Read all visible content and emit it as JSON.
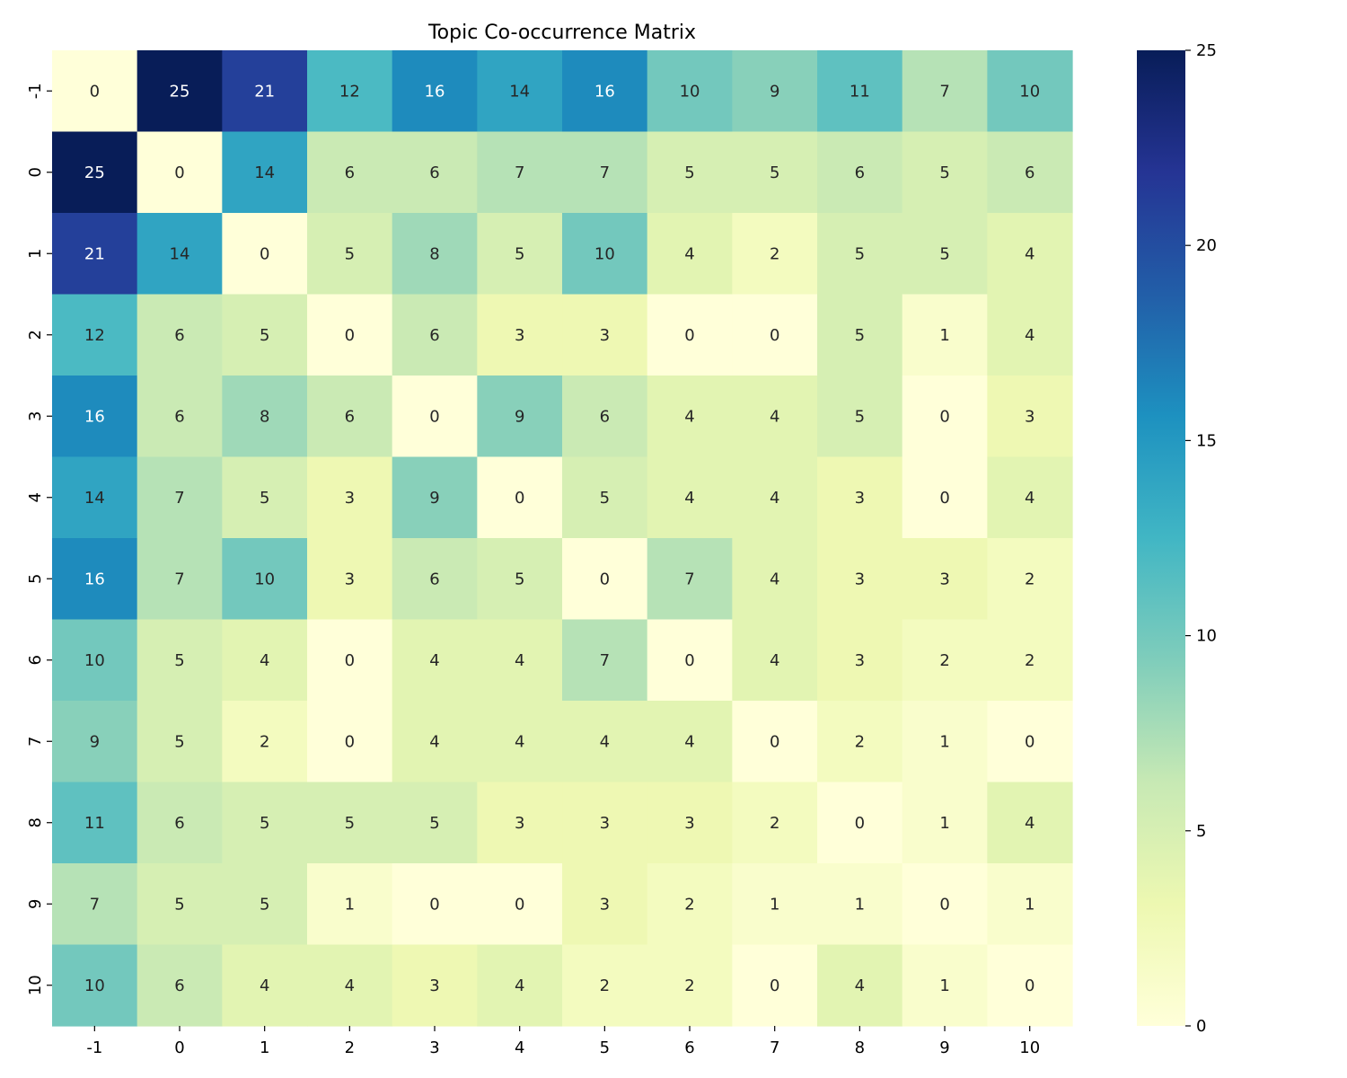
{
  "chart_data": {
    "type": "heatmap",
    "title": "Topic Co-occurrence Matrix",
    "xlabel": "",
    "ylabel": "",
    "x_categories": [
      "-1",
      "0",
      "1",
      "2",
      "3",
      "4",
      "5",
      "6",
      "7",
      "8",
      "9",
      "10"
    ],
    "y_categories": [
      "-1",
      "0",
      "1",
      "2",
      "3",
      "4",
      "5",
      "6",
      "7",
      "8",
      "9",
      "10"
    ],
    "values": [
      [
        0,
        25,
        21,
        12,
        16,
        14,
        16,
        10,
        9,
        11,
        7,
        10
      ],
      [
        25,
        0,
        14,
        6,
        6,
        7,
        7,
        5,
        5,
        6,
        5,
        6
      ],
      [
        21,
        14,
        0,
        5,
        8,
        5,
        10,
        4,
        2,
        5,
        5,
        4
      ],
      [
        12,
        6,
        5,
        0,
        6,
        3,
        3,
        0,
        0,
        5,
        1,
        4
      ],
      [
        16,
        6,
        8,
        6,
        0,
        9,
        6,
        4,
        4,
        5,
        0,
        3
      ],
      [
        14,
        7,
        5,
        3,
        9,
        0,
        5,
        4,
        4,
        3,
        0,
        4
      ],
      [
        16,
        7,
        10,
        3,
        6,
        5,
        0,
        7,
        4,
        3,
        3,
        2
      ],
      [
        10,
        5,
        4,
        0,
        4,
        4,
        7,
        0,
        4,
        3,
        2,
        2
      ],
      [
        9,
        5,
        2,
        0,
        4,
        4,
        4,
        4,
        0,
        2,
        1,
        0
      ],
      [
        11,
        6,
        5,
        5,
        5,
        3,
        3,
        3,
        2,
        0,
        1,
        4
      ],
      [
        7,
        5,
        5,
        1,
        0,
        0,
        3,
        2,
        1,
        1,
        0,
        1
      ],
      [
        10,
        6,
        4,
        4,
        3,
        4,
        2,
        2,
        0,
        4,
        1,
        0
      ]
    ],
    "colormap": "YlGnBu",
    "colormap_stops": [
      "#ffffd9",
      "#edf8b1",
      "#c7e9b4",
      "#7fcdbb",
      "#41b6c4",
      "#1d91c0",
      "#225ea8",
      "#253494",
      "#081d58"
    ],
    "vmin": 0,
    "vmax": 25,
    "colorbar": {
      "position": "right",
      "ticks": [
        0,
        5,
        10,
        15,
        20,
        25
      ]
    },
    "grid": false,
    "annotated": true
  }
}
